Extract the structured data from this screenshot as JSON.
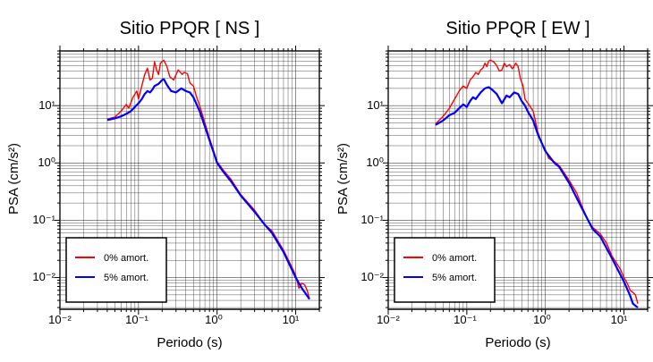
{
  "chart_data": [
    {
      "type": "line",
      "title": "Sitio PPQR [ NS ]",
      "xlabel": "Periodo (s)",
      "ylabel": "PSA (cm/s²)",
      "x_scale": "log",
      "y_scale": "log",
      "xlim": [
        0.01,
        20
      ],
      "ylim": [
        0.0028,
        90
      ],
      "grid": true,
      "legend_position": "bottom-left",
      "x_tick_labels": [
        "10⁻²",
        "10⁻¹",
        "10⁰",
        "10¹"
      ],
      "y_tick_labels": [
        "10¹",
        "10⁰",
        "10⁻¹",
        "10⁻²"
      ],
      "series": [
        {
          "name": "0% amort.",
          "color": "#ff0000",
          "points": [
            [
              0.04,
              5.8
            ],
            [
              0.05,
              6.3
            ],
            [
              0.06,
              8
            ],
            [
              0.07,
              10.5
            ],
            [
              0.075,
              9
            ],
            [
              0.085,
              14
            ],
            [
              0.095,
              18
            ],
            [
              0.1,
              13
            ],
            [
              0.11,
              22
            ],
            [
              0.12,
              35
            ],
            [
              0.13,
              45
            ],
            [
              0.14,
              28
            ],
            [
              0.15,
              30
            ],
            [
              0.16,
              58
            ],
            [
              0.17,
              42
            ],
            [
              0.18,
              35
            ],
            [
              0.19,
              55
            ],
            [
              0.21,
              62
            ],
            [
              0.23,
              48
            ],
            [
              0.25,
              32
            ],
            [
              0.28,
              28
            ],
            [
              0.32,
              42
            ],
            [
              0.36,
              35
            ],
            [
              0.38,
              38
            ],
            [
              0.42,
              36
            ],
            [
              0.45,
              25
            ],
            [
              0.5,
              22
            ],
            [
              0.55,
              14
            ],
            [
              0.6,
              10
            ],
            [
              0.7,
              5
            ],
            [
              0.8,
              2.7
            ],
            [
              1.0,
              1.05
            ],
            [
              1.2,
              0.75
            ],
            [
              1.5,
              0.52
            ],
            [
              2.0,
              0.28
            ],
            [
              3.0,
              0.15
            ],
            [
              4.0,
              0.085
            ],
            [
              5.0,
              0.065
            ],
            [
              7.0,
              0.03
            ],
            [
              9.0,
              0.015
            ],
            [
              10.0,
              0.011
            ],
            [
              11.0,
              0.0065
            ],
            [
              12.0,
              0.008
            ],
            [
              13.0,
              0.0075
            ],
            [
              14.0,
              0.006
            ],
            [
              15.0,
              0.0042
            ]
          ]
        },
        {
          "name": "5% amort.",
          "color": "#0000ff",
          "points": [
            [
              0.04,
              5.6
            ],
            [
              0.05,
              6
            ],
            [
              0.06,
              6.5
            ],
            [
              0.07,
              7.2
            ],
            [
              0.08,
              8
            ],
            [
              0.09,
              9.5
            ],
            [
              0.1,
              11
            ],
            [
              0.11,
              13
            ],
            [
              0.12,
              16
            ],
            [
              0.13,
              18
            ],
            [
              0.14,
              17
            ],
            [
              0.15,
              19
            ],
            [
              0.16,
              22
            ],
            [
              0.18,
              24
            ],
            [
              0.2,
              28
            ],
            [
              0.21,
              29
            ],
            [
              0.23,
              23
            ],
            [
              0.26,
              18
            ],
            [
              0.3,
              17
            ],
            [
              0.35,
              20
            ],
            [
              0.4,
              18
            ],
            [
              0.45,
              17
            ],
            [
              0.5,
              14
            ],
            [
              0.6,
              8
            ],
            [
              0.7,
              4.3
            ],
            [
              0.8,
              2.5
            ],
            [
              1.0,
              1.0
            ],
            [
              1.2,
              0.7
            ],
            [
              1.5,
              0.48
            ],
            [
              2.0,
              0.27
            ],
            [
              3.0,
              0.14
            ],
            [
              4.0,
              0.085
            ],
            [
              5.0,
              0.06
            ],
            [
              7.0,
              0.028
            ],
            [
              10.0,
              0.01
            ],
            [
              12.0,
              0.0065
            ],
            [
              15.0,
              0.0042
            ]
          ]
        }
      ]
    },
    {
      "type": "line",
      "title": "Sitio PPQR [ EW ]",
      "xlabel": "Periodo (s)",
      "ylabel": "PSA (cm/s²)",
      "x_scale": "log",
      "y_scale": "log",
      "xlim": [
        0.01,
        20
      ],
      "ylim": [
        0.0028,
        90
      ],
      "grid": true,
      "legend_position": "bottom-left",
      "x_tick_labels": [
        "10⁻²",
        "10⁻¹",
        "10⁰",
        "10¹"
      ],
      "y_tick_labels": [
        "10¹",
        "10⁰",
        "10⁻¹",
        "10⁻²"
      ],
      "series": [
        {
          "name": "0% amort.",
          "color": "#ff0000",
          "points": [
            [
              0.04,
              4.8
            ],
            [
              0.05,
              6.5
            ],
            [
              0.06,
              9
            ],
            [
              0.07,
              13
            ],
            [
              0.08,
              18
            ],
            [
              0.09,
              22
            ],
            [
              0.1,
              20
            ],
            [
              0.11,
              28
            ],
            [
              0.12,
              32
            ],
            [
              0.13,
              38
            ],
            [
              0.14,
              35
            ],
            [
              0.15,
              42
            ],
            [
              0.16,
              45
            ],
            [
              0.17,
              55
            ],
            [
              0.18,
              48
            ],
            [
              0.19,
              60
            ],
            [
              0.2,
              62
            ],
            [
              0.22,
              58
            ],
            [
              0.24,
              50
            ],
            [
              0.26,
              40
            ],
            [
              0.28,
              42
            ],
            [
              0.3,
              55
            ],
            [
              0.32,
              48
            ],
            [
              0.35,
              52
            ],
            [
              0.38,
              44
            ],
            [
              0.42,
              55
            ],
            [
              0.45,
              48
            ],
            [
              0.48,
              30
            ],
            [
              0.52,
              22
            ],
            [
              0.55,
              13
            ],
            [
              0.6,
              11
            ],
            [
              0.7,
              8
            ],
            [
              0.8,
              3.5
            ],
            [
              0.9,
              2.2
            ],
            [
              1.0,
              1.7
            ],
            [
              1.1,
              1.2
            ],
            [
              1.3,
              1.05
            ],
            [
              1.5,
              0.9
            ],
            [
              1.7,
              0.7
            ],
            [
              2.0,
              0.5
            ],
            [
              2.5,
              0.3
            ],
            [
              3.0,
              0.16
            ],
            [
              3.5,
              0.1
            ],
            [
              4.0,
              0.075
            ],
            [
              5.0,
              0.058
            ],
            [
              6.0,
              0.04
            ],
            [
              7.0,
              0.024
            ],
            [
              8.0,
              0.018
            ],
            [
              9.0,
              0.014
            ],
            [
              10.0,
              0.01
            ],
            [
              11.0,
              0.008
            ],
            [
              12.0,
              0.006
            ],
            [
              13.0,
              0.0055
            ],
            [
              14.0,
              0.005
            ],
            [
              15.0,
              0.0035
            ]
          ]
        },
        {
          "name": "5% amort.",
          "color": "#0000ff",
          "points": [
            [
              0.04,
              4.6
            ],
            [
              0.05,
              5.5
            ],
            [
              0.06,
              6.8
            ],
            [
              0.07,
              7.5
            ],
            [
              0.08,
              9
            ],
            [
              0.09,
              10.5
            ],
            [
              0.1,
              9.5
            ],
            [
              0.11,
              12
            ],
            [
              0.12,
              14
            ],
            [
              0.13,
              13
            ],
            [
              0.14,
              15
            ],
            [
              0.15,
              17
            ],
            [
              0.17,
              20
            ],
            [
              0.19,
              21
            ],
            [
              0.21,
              19
            ],
            [
              0.24,
              16
            ],
            [
              0.28,
              11
            ],
            [
              0.32,
              15
            ],
            [
              0.35,
              14
            ],
            [
              0.4,
              17
            ],
            [
              0.45,
              16
            ],
            [
              0.5,
              12
            ],
            [
              0.55,
              10
            ],
            [
              0.6,
              7.8
            ],
            [
              0.7,
              5.5
            ],
            [
              0.8,
              3.2
            ],
            [
              1.0,
              1.6
            ],
            [
              1.3,
              1.0
            ],
            [
              1.5,
              0.85
            ],
            [
              2.0,
              0.45
            ],
            [
              3.0,
              0.15
            ],
            [
              4.0,
              0.07
            ],
            [
              5.0,
              0.052
            ],
            [
              7.0,
              0.022
            ],
            [
              10.0,
              0.0085
            ],
            [
              12.0,
              0.0048
            ],
            [
              13.0,
              0.0035
            ],
            [
              15.0,
              0.003
            ]
          ]
        }
      ]
    }
  ]
}
